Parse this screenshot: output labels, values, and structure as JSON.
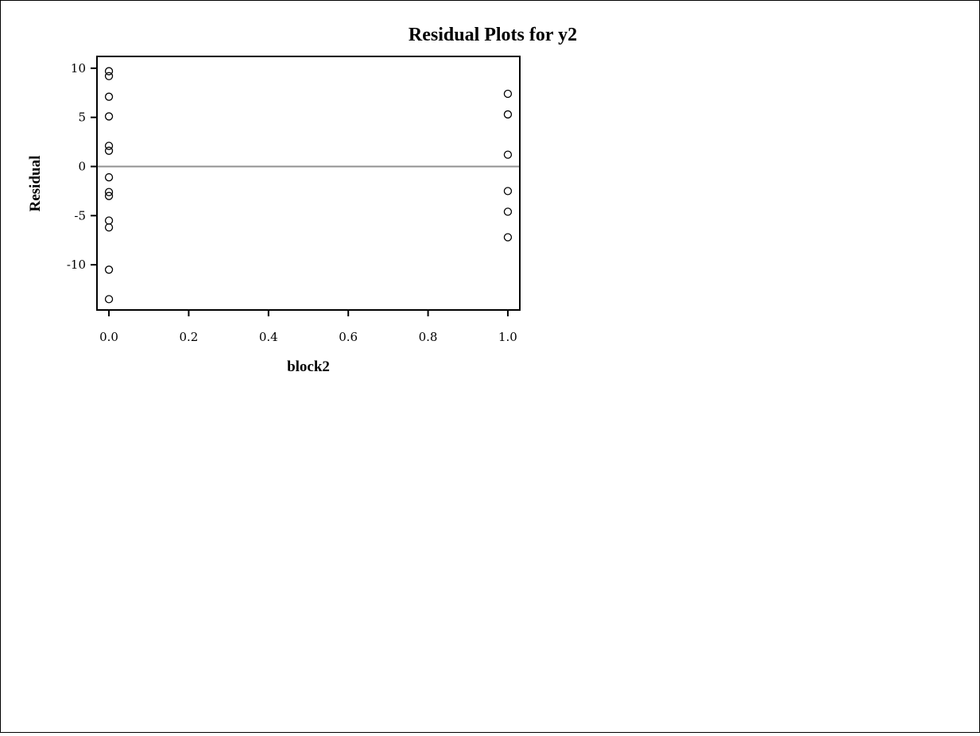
{
  "chart_data": {
    "type": "scatter",
    "title": "Residual Plots for y2",
    "xlabel": "block2",
    "ylabel": "Residual",
    "xlim": [
      -0.03,
      1.03
    ],
    "ylim": [
      -14.6,
      11.2
    ],
    "xticks": [
      0.0,
      0.2,
      0.4,
      0.6,
      0.8,
      1.0
    ],
    "xtick_labels": [
      "0.0",
      "0.2",
      "0.4",
      "0.6",
      "0.8",
      "1.0"
    ],
    "yticks": [
      10,
      5,
      0,
      -5,
      -10
    ],
    "ytick_labels": [
      "10",
      "5",
      "0",
      "-5",
      "-10"
    ],
    "reference_line_y": 0,
    "grid": false,
    "marker": "open-circle",
    "colors": {
      "marker": "#000000",
      "reference_line": "#909090",
      "axes": "#000000"
    },
    "points": [
      {
        "x": 0,
        "y": 9.7
      },
      {
        "x": 0,
        "y": 9.2
      },
      {
        "x": 0,
        "y": 7.1
      },
      {
        "x": 0,
        "y": 5.1
      },
      {
        "x": 0,
        "y": 2.1
      },
      {
        "x": 0,
        "y": 1.6
      },
      {
        "x": 0,
        "y": -1.1
      },
      {
        "x": 0,
        "y": -2.6
      },
      {
        "x": 0,
        "y": -3.0
      },
      {
        "x": 0,
        "y": -5.5
      },
      {
        "x": 0,
        "y": -6.2
      },
      {
        "x": 0,
        "y": -10.5
      },
      {
        "x": 0,
        "y": -13.5
      },
      {
        "x": 1,
        "y": 7.4
      },
      {
        "x": 1,
        "y": 5.3
      },
      {
        "x": 1,
        "y": 1.2
      },
      {
        "x": 1,
        "y": -2.5
      },
      {
        "x": 1,
        "y": -4.6
      },
      {
        "x": 1,
        "y": -7.2
      }
    ]
  }
}
